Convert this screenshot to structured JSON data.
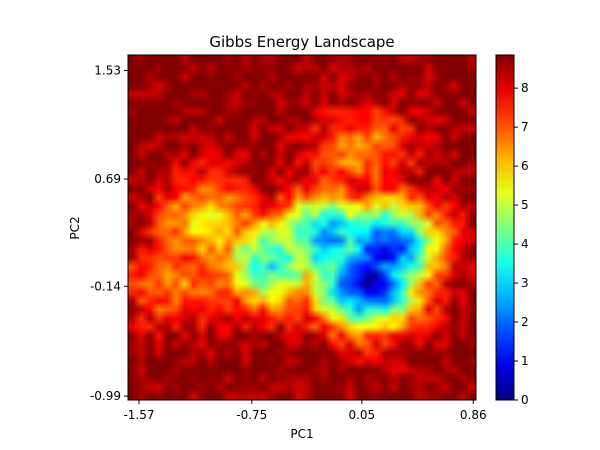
{
  "chart_data": {
    "type": "heatmap",
    "title": "Gibbs Energy Landscape",
    "xlabel": "PC1",
    "ylabel": "PC2",
    "xlim": [
      -1.65,
      0.88
    ],
    "ylim": [
      -1.02,
      1.65
    ],
    "x_ticks": [
      {
        "value": -1.57,
        "label": "-1.57"
      },
      {
        "value": -0.75,
        "label": "-0.75"
      },
      {
        "value": 0.05,
        "label": "0.05"
      },
      {
        "value": 0.86,
        "label": "0.86"
      }
    ],
    "y_ticks": [
      {
        "value": 1.53,
        "label": "1.53"
      },
      {
        "value": 0.69,
        "label": "0.69"
      },
      {
        "value": -0.14,
        "label": "-0.14"
      },
      {
        "value": -0.99,
        "label": "-0.99"
      }
    ],
    "colorbar": {
      "min": 0,
      "max": 8.85,
      "ticks": [
        "0",
        "1",
        "2",
        "3",
        "4",
        "5",
        "6",
        "7",
        "8"
      ],
      "colormap": "jet"
    },
    "basin_centers": [
      {
        "x": 0.08,
        "y": -0.1,
        "energy": 0.5
      },
      {
        "x": 0.22,
        "y": 0.15,
        "energy": 1.2
      },
      {
        "x": -0.2,
        "y": 0.22,
        "energy": 2.5
      },
      {
        "x": -0.6,
        "y": 0.05,
        "energy": 3.5
      },
      {
        "x": -1.05,
        "y": 0.35,
        "energy": 5.5
      },
      {
        "x": 0.05,
        "y": 0.9,
        "energy": 6.5
      },
      {
        "x": -1.3,
        "y": -0.1,
        "energy": 6.5
      }
    ],
    "grid": false
  }
}
